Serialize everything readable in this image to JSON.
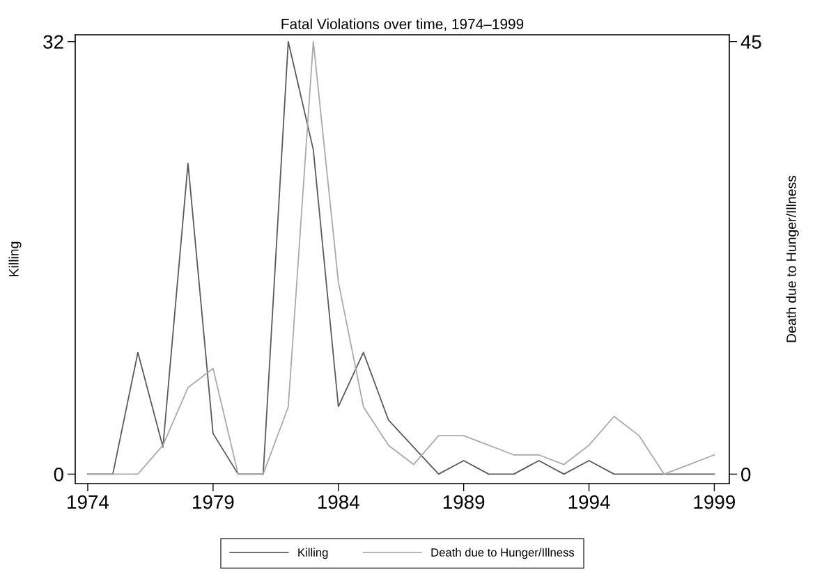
{
  "chart_data": {
    "type": "line",
    "title": "Fatal Violations over time, 1974–1999",
    "ylabel": "Killing",
    "y2label": "Death due to Hunger/Illness",
    "x": [
      1974,
      1975,
      1976,
      1977,
      1978,
      1979,
      1980,
      1981,
      1982,
      1983,
      1984,
      1985,
      1986,
      1987,
      1988,
      1989,
      1990,
      1991,
      1992,
      1993,
      1994,
      1995,
      1996,
      1997,
      1998,
      1999
    ],
    "series": [
      {
        "name": "Killing",
        "color": "#5a5a5a",
        "values": [
          0,
          0,
          9,
          2,
          23,
          3,
          0,
          0,
          32,
          24,
          5,
          9,
          4,
          2,
          0,
          1,
          0,
          0,
          1,
          0,
          1,
          0,
          0,
          0,
          0,
          0
        ]
      },
      {
        "name": "Death due to Hunger/Illness",
        "color": "#aaaaaa",
        "axis": "y2",
        "values": [
          0,
          0,
          0,
          3,
          9,
          11,
          0,
          0,
          7,
          45,
          20,
          7,
          3,
          1,
          4,
          4,
          3,
          2,
          2,
          1,
          3,
          6,
          4,
          0,
          1,
          2
        ]
      }
    ],
    "xlim": [
      1973.5,
      1999.6
    ],
    "xticks": [
      1974,
      1979,
      1984,
      1989,
      1994,
      1999
    ],
    "ylim": [
      -0.7,
      32.5
    ],
    "yticks": [
      0,
      32
    ],
    "y2lim": [
      -0.984,
      45.7
    ],
    "y2ticks": [
      0,
      45
    ],
    "grid": false,
    "legend": "bottom",
    "marker": "none",
    "line_style": "solid"
  }
}
